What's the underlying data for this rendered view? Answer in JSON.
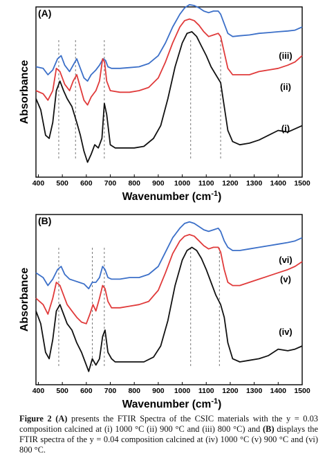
{
  "chart_data": [
    {
      "type": "line",
      "panel_label": "(A)",
      "xlabel": "Wavenumber (cm",
      "xlabel_sup": "-1",
      "xlabel_close": ")",
      "ylabel": "Absorbance",
      "xlim": [
        390,
        1500
      ],
      "xticks": [
        400,
        500,
        600,
        700,
        800,
        900,
        1000,
        1100,
        1200,
        1300,
        1400,
        1500
      ],
      "ref_lines": [
        485,
        555,
        675,
        1035,
        1160
      ],
      "series": [
        {
          "name": "(iii)",
          "color": "#3b6fc8",
          "x": [
            390,
            420,
            440,
            460,
            480,
            495,
            510,
            530,
            545,
            560,
            575,
            590,
            605,
            620,
            640,
            655,
            670,
            680,
            690,
            705,
            740,
            780,
            820,
            860,
            900,
            930,
            960,
            990,
            1010,
            1030,
            1050,
            1070,
            1090,
            1110,
            1130,
            1150,
            1160,
            1175,
            1190,
            1210,
            1240,
            1280,
            1320,
            1360,
            1400,
            1440,
            1470,
            1500
          ],
          "y": [
            0.65,
            0.64,
            0.6,
            0.63,
            0.7,
            0.72,
            0.66,
            0.62,
            0.66,
            0.7,
            0.64,
            0.58,
            0.56,
            0.6,
            0.63,
            0.66,
            0.7,
            0.69,
            0.65,
            0.64,
            0.64,
            0.645,
            0.65,
            0.67,
            0.72,
            0.8,
            0.9,
            0.98,
            1.02,
            1.04,
            1.035,
            1.02,
            1.0,
            0.99,
            1.0,
            1.0,
            0.98,
            0.92,
            0.86,
            0.84,
            0.845,
            0.85,
            0.86,
            0.865,
            0.87,
            0.875,
            0.88,
            0.9
          ]
        },
        {
          "name": "(ii)",
          "color": "#e03a3a",
          "x": [
            390,
            420,
            440,
            460,
            475,
            490,
            510,
            530,
            545,
            560,
            575,
            590,
            605,
            620,
            640,
            655,
            668,
            676,
            685,
            700,
            740,
            780,
            820,
            860,
            900,
            930,
            960,
            990,
            1010,
            1030,
            1050,
            1070,
            1090,
            1110,
            1130,
            1150,
            1160,
            1175,
            1190,
            1210,
            1240,
            1280,
            1320,
            1360,
            1400,
            1440,
            1470,
            1500
          ],
          "y": [
            0.5,
            0.48,
            0.44,
            0.5,
            0.64,
            0.62,
            0.54,
            0.5,
            0.56,
            0.6,
            0.52,
            0.44,
            0.41,
            0.46,
            0.5,
            0.56,
            0.7,
            0.68,
            0.56,
            0.5,
            0.49,
            0.49,
            0.5,
            0.52,
            0.58,
            0.68,
            0.8,
            0.9,
            0.94,
            0.95,
            0.94,
            0.91,
            0.87,
            0.84,
            0.85,
            0.86,
            0.84,
            0.74,
            0.64,
            0.6,
            0.6,
            0.6,
            0.62,
            0.63,
            0.64,
            0.66,
            0.68,
            0.72
          ]
        },
        {
          "name": "(i)",
          "color": "#111111",
          "x": [
            390,
            410,
            430,
            445,
            460,
            475,
            490,
            505,
            520,
            540,
            560,
            575,
            590,
            605,
            620,
            635,
            650,
            665,
            675,
            685,
            700,
            720,
            760,
            800,
            840,
            880,
            910,
            940,
            970,
            1000,
            1020,
            1040,
            1060,
            1080,
            1100,
            1120,
            1140,
            1160,
            1175,
            1190,
            1210,
            1240,
            1280,
            1320,
            1360,
            1400,
            1440,
            1470,
            1500
          ],
          "y": [
            0.45,
            0.38,
            0.22,
            0.2,
            0.3,
            0.5,
            0.56,
            0.5,
            0.45,
            0.4,
            0.3,
            0.22,
            0.12,
            0.05,
            0.1,
            0.16,
            0.14,
            0.2,
            0.42,
            0.35,
            0.16,
            0.14,
            0.14,
            0.14,
            0.15,
            0.2,
            0.28,
            0.45,
            0.65,
            0.8,
            0.86,
            0.87,
            0.84,
            0.78,
            0.72,
            0.65,
            0.6,
            0.55,
            0.4,
            0.25,
            0.18,
            0.16,
            0.17,
            0.19,
            0.22,
            0.25,
            0.24,
            0.26,
            0.28
          ]
        }
      ]
    },
    {
      "type": "line",
      "panel_label": "(B)",
      "xlabel": "Wavenumber (cm",
      "xlabel_sup": "-1",
      "xlabel_close": ")",
      "ylabel": "Absorbance",
      "xlim": [
        390,
        1500
      ],
      "xticks": [
        400,
        500,
        600,
        700,
        800,
        900,
        1000,
        1100,
        1200,
        1300,
        1400,
        1500
      ],
      "ref_lines": [
        485,
        625,
        675,
        1035,
        1155
      ],
      "series": [
        {
          "name": "(vi)",
          "color": "#3b6fc8",
          "x": [
            390,
            420,
            440,
            460,
            480,
            495,
            510,
            530,
            550,
            570,
            590,
            610,
            625,
            640,
            655,
            668,
            678,
            690,
            705,
            740,
            780,
            820,
            860,
            900,
            930,
            960,
            990,
            1010,
            1030,
            1050,
            1070,
            1090,
            1110,
            1130,
            1150,
            1160,
            1175,
            1190,
            1210,
            1240,
            1280,
            1320,
            1360,
            1400,
            1440,
            1470,
            1500
          ],
          "y": [
            0.66,
            0.63,
            0.58,
            0.62,
            0.68,
            0.7,
            0.65,
            0.62,
            0.61,
            0.6,
            0.59,
            0.56,
            0.6,
            0.6,
            0.63,
            0.7,
            0.68,
            0.63,
            0.62,
            0.62,
            0.63,
            0.63,
            0.65,
            0.7,
            0.79,
            0.88,
            0.94,
            0.97,
            0.98,
            0.97,
            0.95,
            0.93,
            0.92,
            0.93,
            0.94,
            0.92,
            0.86,
            0.82,
            0.8,
            0.8,
            0.81,
            0.82,
            0.83,
            0.84,
            0.85,
            0.86,
            0.88
          ]
        },
        {
          "name": "(v)",
          "color": "#e03a3a",
          "x": [
            390,
            420,
            440,
            460,
            475,
            490,
            505,
            520,
            540,
            560,
            580,
            600,
            615,
            628,
            640,
            655,
            668,
            678,
            690,
            705,
            740,
            780,
            820,
            860,
            900,
            930,
            960,
            990,
            1010,
            1030,
            1050,
            1070,
            1090,
            1110,
            1130,
            1150,
            1160,
            1175,
            1190,
            1210,
            1240,
            1280,
            1320,
            1360,
            1400,
            1440,
            1470,
            1500
          ],
          "y": [
            0.5,
            0.46,
            0.4,
            0.5,
            0.6,
            0.58,
            0.52,
            0.46,
            0.42,
            0.38,
            0.35,
            0.34,
            0.4,
            0.46,
            0.42,
            0.5,
            0.58,
            0.56,
            0.48,
            0.44,
            0.44,
            0.45,
            0.46,
            0.48,
            0.55,
            0.66,
            0.78,
            0.86,
            0.89,
            0.9,
            0.89,
            0.86,
            0.83,
            0.81,
            0.82,
            0.82,
            0.79,
            0.68,
            0.6,
            0.58,
            0.58,
            0.6,
            0.62,
            0.64,
            0.66,
            0.68,
            0.7,
            0.73
          ]
        },
        {
          "name": "(iv)",
          "color": "#111111",
          "x": [
            390,
            410,
            430,
            445,
            460,
            475,
            490,
            505,
            520,
            540,
            560,
            580,
            595,
            610,
            625,
            640,
            655,
            668,
            678,
            690,
            705,
            720,
            760,
            800,
            840,
            880,
            910,
            940,
            970,
            1000,
            1020,
            1040,
            1060,
            1080,
            1100,
            1120,
            1140,
            1160,
            1175,
            1190,
            1210,
            1240,
            1280,
            1320,
            1360,
            1400,
            1440,
            1470,
            1500
          ],
          "y": [
            0.42,
            0.34,
            0.16,
            0.12,
            0.24,
            0.42,
            0.46,
            0.4,
            0.34,
            0.3,
            0.22,
            0.16,
            0.1,
            0.04,
            0.12,
            0.08,
            0.12,
            0.26,
            0.3,
            0.16,
            0.12,
            0.1,
            0.1,
            0.1,
            0.1,
            0.13,
            0.2,
            0.36,
            0.58,
            0.74,
            0.8,
            0.82,
            0.8,
            0.75,
            0.68,
            0.6,
            0.52,
            0.46,
            0.38,
            0.22,
            0.12,
            0.1,
            0.11,
            0.12,
            0.14,
            0.18,
            0.17,
            0.18,
            0.2
          ]
        }
      ]
    }
  ],
  "caption": {
    "fig_label": "Figure 2",
    "label_a": "(A)",
    "text_1": " presents the FTIR Spectra of the CSIC materials with the y = 0.03 composition calcined at (i) 1000 °C (ii) 900 °C and (iii) 800 °C) and ",
    "label_b": "(B)",
    "text_2": " displays the FTIR spectra of the y = 0.04 composition calcined at (iv) 1000 °C (v) 900 °C and (vi) 800 °C."
  }
}
